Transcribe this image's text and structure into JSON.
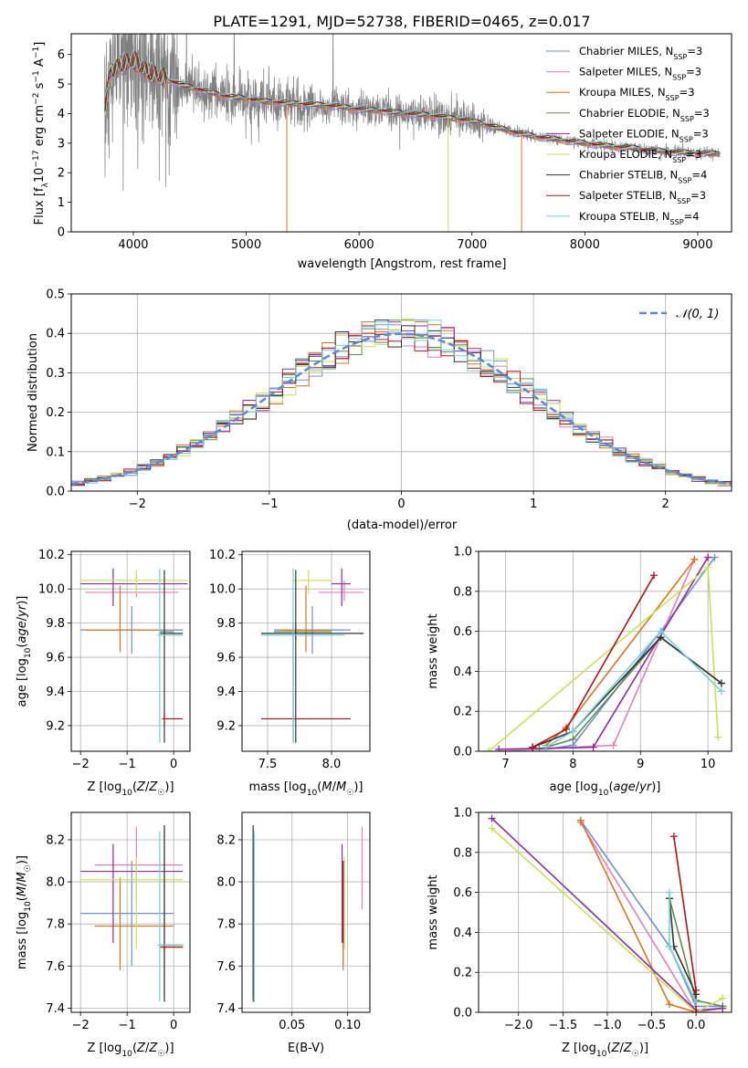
{
  "figure": {
    "title": "PLATE=1291, MJD=52738, FIBERID=0465, z=0.017"
  },
  "palette": [
    {
      "name": "Chabrier MILES",
      "color": "#6f8fd8"
    },
    {
      "name": "Salpeter MILES",
      "color": "#e37fb7"
    },
    {
      "name": "Kroupa MILES",
      "color": "#d9761c"
    },
    {
      "name": "Chabrier ELODIE",
      "color": "#5f8f4a"
    },
    {
      "name": "Salpeter ELODIE",
      "color": "#8e2aa5"
    },
    {
      "name": "Kroupa ELODIE",
      "color": "#c4e356"
    },
    {
      "name": "Chabrier STELIB",
      "color": "#333333"
    },
    {
      "name": "Salpeter STELIB",
      "color": "#b31313"
    },
    {
      "name": "Kroupa STELIB",
      "color": "#6fd3d8"
    }
  ],
  "chart_data": [
    {
      "id": "spectrum",
      "type": "line",
      "title": "PLATE=1291, MJD=52738, FIBERID=0465, z=0.017",
      "xlabel": "wavelength [Angstrom, rest frame]",
      "ylabel": "Flux [fλ10⁻¹⁷ erg cm⁻² s⁻¹ A⁻¹]",
      "xlim": [
        3450,
        9300
      ],
      "ylim": [
        0,
        6.7
      ],
      "xticks": [
        4000,
        5000,
        6000,
        7000,
        8000,
        9000
      ],
      "yticks": [
        0,
        1,
        2,
        3,
        4,
        5,
        6
      ],
      "legend_position": "upper-right",
      "data_color": "#808080",
      "model_x": [
        3750,
        3800,
        3900,
        4000,
        4100,
        4200,
        4400,
        4600,
        4800,
        5000,
        5200,
        5400,
        5600,
        5800,
        6000,
        6200,
        6400,
        6600,
        6800,
        7000,
        7200,
        7400,
        7600,
        7800,
        8000,
        8200,
        8400,
        8600,
        8800,
        9000
      ],
      "model_y": [
        4.2,
        5.4,
        5.7,
        5.8,
        5.5,
        5.3,
        5.0,
        4.8,
        4.6,
        4.5,
        4.4,
        4.35,
        4.3,
        4.25,
        4.15,
        4.1,
        4.0,
        3.95,
        3.85,
        3.75,
        3.55,
        3.35,
        3.2,
        3.1,
        3.0,
        2.9,
        2.85,
        2.75,
        2.7,
        2.65
      ],
      "series": [
        {
          "name": "Chabrier MILES, N_SSP=3",
          "label_main": "Chabrier MILES, N",
          "label_tail": "=3"
        },
        {
          "name": "Salpeter MILES, N_SSP=3",
          "label_main": "Salpeter MILES, N",
          "label_tail": "=3"
        },
        {
          "name": "Kroupa MILES, N_SSP=3",
          "label_main": "Kroupa MILES, N",
          "label_tail": "=3"
        },
        {
          "name": "Chabrier ELODIE, N_SSP=3",
          "label_main": "Chabrier ELODIE, N",
          "label_tail": "=3"
        },
        {
          "name": "Salpeter ELODIE, N_SSP=3",
          "label_main": "Salpeter ELODIE, N",
          "label_tail": "=3"
        },
        {
          "name": "Kroupa ELODIE, N_SSP=3",
          "label_main": "Kroupa ELODIE, N",
          "label_tail": "=3"
        },
        {
          "name": "Chabrier STELIB, N_SSP=4",
          "label_main": "Chabrier STELIB, N",
          "label_tail": "=4"
        },
        {
          "name": "Salpeter STELIB, N_SSP=3",
          "label_main": "Salpeter STELIB, N",
          "label_tail": "=3"
        },
        {
          "name": "Kroupa STELIB, N_SSP=4",
          "label_main": "Kroupa STELIB, N",
          "label_tail": "=4"
        }
      ],
      "legend_subscript": "SSP",
      "model_drops": [
        {
          "series_index": 2,
          "x": 5360
        },
        {
          "series_index": 2,
          "x": 7440
        },
        {
          "series_index": 5,
          "x": 6790
        }
      ]
    },
    {
      "id": "residuals",
      "type": "line",
      "xlabel": "(data-model)/error",
      "ylabel": "Normed distribution",
      "xlim": [
        -2.5,
        2.5
      ],
      "ylim": [
        0,
        0.5
      ],
      "xticks": [
        -2,
        -1,
        0,
        1,
        2
      ],
      "yticks": [
        0.0,
        0.1,
        0.2,
        0.3,
        0.4,
        0.5
      ],
      "grid": true,
      "legend_position": "upper-right",
      "reference_label": "𝒩(0, 1)",
      "reference_color": "#5a8bd6",
      "bin_width": 0.1,
      "gaussian_sigma": 1.0
    },
    {
      "id": "age-vs-Z",
      "type": "scatter",
      "xlabel": "Z [log10(Z/Z☉)]",
      "ylabel": "age [log10(age/yr)]",
      "xlim": [
        -2.2,
        0.35
      ],
      "ylim": [
        9.05,
        10.22
      ],
      "xticks": [
        -2,
        -1,
        0
      ],
      "yticks": [
        9.2,
        9.4,
        9.6,
        9.8,
        10.0,
        10.2
      ],
      "errorbars": [
        {
          "c": 0,
          "x": -0.9,
          "y": 9.76,
          "xe": [
            -2.0,
            0.2
          ],
          "ye": [
            9.62,
            9.9
          ]
        },
        {
          "c": 1,
          "x": -0.8,
          "y": 9.98,
          "xe": [
            -1.9,
            0.1
          ],
          "ye": [
            9.95,
            10.0
          ]
        },
        {
          "c": 2,
          "x": -1.15,
          "y": 9.76,
          "xe": [
            -1.9,
            -0.3
          ],
          "ye": [
            9.63,
            10.02
          ]
        },
        {
          "c": 3,
          "x": -0.2,
          "y": 9.75,
          "xe": [
            -0.3,
            0.0
          ],
          "ye": [
            9.7,
            9.8
          ]
        },
        {
          "c": 4,
          "x": -1.3,
          "y": 10.03,
          "xe": [
            -2.0,
            0.3
          ],
          "ye": [
            9.9,
            10.12
          ]
        },
        {
          "c": 5,
          "x": -0.8,
          "y": 10.05,
          "xe": [
            -2.0,
            0.3
          ],
          "ye": [
            9.97,
            10.11
          ]
        },
        {
          "c": 6,
          "x": -0.2,
          "y": 9.74,
          "xe": [
            -0.3,
            0.2
          ],
          "ye": [
            9.1,
            10.11
          ]
        },
        {
          "c": 7,
          "x": -0.2,
          "y": 9.24,
          "xe": [
            -0.25,
            0.2
          ],
          "ye": [
            9.2,
            9.28
          ]
        },
        {
          "c": 8,
          "x": -0.3,
          "y": 9.73,
          "xe": [
            -0.35,
            0.2
          ],
          "ye": [
            9.1,
            10.12
          ]
        }
      ]
    },
    {
      "id": "age-vs-mass",
      "type": "scatter",
      "xlabel": "mass [log10(M/M☉)]",
      "ylabel": "",
      "xlim": [
        7.3,
        8.3
      ],
      "ylim": [
        9.05,
        10.22
      ],
      "xticks": [
        7.5,
        8.0
      ],
      "yticks": [
        9.2,
        9.4,
        9.6,
        9.8,
        10.0,
        10.2
      ],
      "errorbars": [
        {
          "c": 0,
          "x": 7.85,
          "y": 9.76,
          "xe": [
            7.55,
            8.15
          ],
          "ye": [
            9.62,
            9.9
          ]
        },
        {
          "c": 1,
          "x": 8.1,
          "y": 9.98,
          "xe": [
            7.9,
            8.25
          ],
          "ye": [
            9.93,
            10.05
          ]
        },
        {
          "c": 2,
          "x": 7.8,
          "y": 9.76,
          "xe": [
            7.6,
            8.0
          ],
          "ye": [
            9.63,
            10.02
          ]
        },
        {
          "c": 3,
          "x": 7.72,
          "y": 9.75,
          "xe": [
            7.55,
            8.0
          ],
          "ye": [
            9.7,
            9.8
          ]
        },
        {
          "c": 4,
          "x": 8.08,
          "y": 10.03,
          "xe": [
            8.0,
            8.15
          ],
          "ye": [
            9.9,
            10.12
          ]
        },
        {
          "c": 5,
          "x": 7.82,
          "y": 10.05,
          "xe": [
            7.7,
            8.0
          ],
          "ye": [
            9.97,
            10.11
          ]
        },
        {
          "c": 6,
          "x": 7.72,
          "y": 9.74,
          "xe": [
            7.45,
            8.25
          ],
          "ye": [
            9.1,
            10.11
          ]
        },
        {
          "c": 7,
          "x": 7.7,
          "y": 9.24,
          "xe": [
            7.45,
            8.15
          ],
          "ye": [
            9.1,
            9.8
          ]
        },
        {
          "c": 8,
          "x": 7.7,
          "y": 9.73,
          "xe": [
            7.45,
            8.1
          ],
          "ye": [
            9.1,
            10.12
          ]
        }
      ]
    },
    {
      "id": "massweight-vs-age",
      "type": "line",
      "xlabel": "age [log10(age/yr)]",
      "ylabel": "mass weight",
      "xlim": [
        6.6,
        10.35
      ],
      "ylim": [
        0,
        1.0
      ],
      "xticks": [
        7,
        8,
        9,
        10
      ],
      "yticks": [
        0.0,
        0.2,
        0.4,
        0.6,
        0.8,
        1.0
      ],
      "grid": true,
      "series": [
        {
          "c": 0,
          "x": [
            7.6,
            8.0,
            9.3,
            10.1
          ],
          "y": [
            0.01,
            0.03,
            0.6,
            0.97
          ]
        },
        {
          "c": 1,
          "x": 7.5,
          "y": 0
        },
        {
          "c": 1,
          "x": [
            6.9,
            8.6,
            9.8
          ],
          "y": [
            0.0,
            0.03,
            0.96
          ]
        },
        {
          "c": 2,
          "x": [
            7.6,
            7.9,
            9.8
          ],
          "y": [
            0.03,
            0.12,
            0.96
          ]
        },
        {
          "c": 3,
          "x": [
            7.5,
            8.0,
            9.3,
            10.2
          ],
          "y": [
            0.01,
            0.06,
            0.57,
            0.34
          ]
        },
        {
          "c": 4,
          "x": [
            6.9,
            8.3,
            10.0
          ],
          "y": [
            0.01,
            0.02,
            0.97
          ]
        },
        {
          "c": 5,
          "x": [
            6.75,
            10.0,
            10.15
          ],
          "y": [
            0.0,
            0.92,
            0.07
          ]
        },
        {
          "c": 6,
          "x": [
            7.4,
            8.0,
            9.3,
            10.2
          ],
          "y": [
            0.02,
            0.1,
            0.57,
            0.34
          ]
        },
        {
          "c": 7,
          "x": [
            7.4,
            7.9,
            9.2
          ],
          "y": [
            0.02,
            0.11,
            0.88
          ]
        },
        {
          "c": 8,
          "x": [
            7.6,
            8.0,
            9.3,
            10.2
          ],
          "y": [
            0.02,
            0.1,
            0.6,
            0.3
          ]
        }
      ]
    },
    {
      "id": "mass-vs-Z",
      "type": "scatter",
      "xlabel": "Z [log10(Z/Z☉)]",
      "ylabel": "mass [log10(M/M☉)]",
      "xlim": [
        -2.2,
        0.35
      ],
      "ylim": [
        7.38,
        8.33
      ],
      "xticks": [
        -2,
        -1,
        0
      ],
      "yticks": [
        7.4,
        7.6,
        7.8,
        8.0,
        8.2
      ],
      "errorbars": [
        {
          "c": 0,
          "x": -0.9,
          "y": 7.85,
          "xe": [
            -2.0,
            0.0
          ],
          "ye": [
            7.6,
            8.1
          ]
        },
        {
          "c": 1,
          "x": -0.8,
          "y": 8.08,
          "xe": [
            -1.7,
            0.2
          ],
          "ye": [
            7.9,
            8.26
          ]
        },
        {
          "c": 2,
          "x": -1.15,
          "y": 7.79,
          "xe": [
            -1.7,
            0.0
          ],
          "ye": [
            7.58,
            8.02
          ]
        },
        {
          "c": 3,
          "x": -0.2,
          "y": 7.7,
          "xe": [
            -0.3,
            0.2
          ],
          "ye": [
            7.45,
            8.25
          ]
        },
        {
          "c": 4,
          "x": -1.3,
          "y": 8.05,
          "xe": [
            -2.0,
            0.2
          ],
          "ye": [
            7.71,
            8.18
          ]
        },
        {
          "c": 5,
          "x": -0.8,
          "y": 8.01,
          "xe": [
            -2.0,
            0.2
          ],
          "ye": [
            7.68,
            8.12
          ]
        },
        {
          "c": 6,
          "x": -0.2,
          "y": 7.69,
          "xe": [
            -0.3,
            0.2
          ],
          "ye": [
            7.43,
            8.27
          ]
        },
        {
          "c": 7,
          "x": -0.2,
          "y": 7.69,
          "xe": [
            -0.25,
            0.2
          ],
          "ye": [
            7.67,
            7.71
          ]
        },
        {
          "c": 8,
          "x": -0.3,
          "y": 7.7,
          "xe": [
            -0.35,
            0.2
          ],
          "ye": [
            7.43,
            8.24
          ]
        }
      ]
    },
    {
      "id": "mass-vs-EBV",
      "type": "scatter",
      "xlabel": "E(B-V)",
      "ylabel": "",
      "xlim": [
        0.005,
        0.12
      ],
      "ylim": [
        7.38,
        8.33
      ],
      "xticks": [
        0.05,
        0.1
      ],
      "yticks": [
        7.4,
        7.6,
        7.8,
        8.0,
        8.2
      ],
      "errorbars": [
        {
          "c": 0,
          "x": 0.096,
          "y": 7.85,
          "ye": [
            7.6,
            8.1
          ]
        },
        {
          "c": 1,
          "x": 0.113,
          "y": 8.08,
          "ye": [
            7.87,
            8.26
          ]
        },
        {
          "c": 2,
          "x": 0.096,
          "y": 7.79,
          "ye": [
            7.58,
            8.02
          ]
        },
        {
          "c": 3,
          "x": 0.015,
          "y": 7.8,
          "ye": [
            7.45,
            8.25
          ]
        },
        {
          "c": 4,
          "x": 0.095,
          "y": 8.05,
          "ye": [
            7.71,
            8.18
          ]
        },
        {
          "c": 5,
          "x": 0.097,
          "y": 8.01,
          "ye": [
            7.68,
            8.12
          ]
        },
        {
          "c": 6,
          "x": 0.015,
          "y": 7.85,
          "ye": [
            7.43,
            8.27
          ]
        },
        {
          "c": 7,
          "x": 0.096,
          "y": 7.9,
          "ye": [
            7.71,
            8.1
          ]
        },
        {
          "c": 8,
          "x": 0.016,
          "y": 7.8,
          "ye": [
            7.43,
            8.24
          ]
        }
      ]
    },
    {
      "id": "massweight-vs-Z",
      "type": "line",
      "xlabel": "Z [log10(Z/Z☉)]",
      "ylabel": "mass weight",
      "xlim": [
        -2.45,
        0.4
      ],
      "ylim": [
        0,
        1.0
      ],
      "xticks": [
        -2.0,
        -1.5,
        -1.0,
        -0.5,
        0.0
      ],
      "yticks": [
        0.0,
        0.2,
        0.4,
        0.6,
        0.8,
        1.0
      ],
      "grid": true,
      "series": [
        {
          "c": 0,
          "x": [
            -1.3,
            -0.3,
            0.0,
            0.3
          ],
          "y": [
            0.96,
            0.33,
            0.03,
            0.03
          ]
        },
        {
          "c": 1,
          "x": [
            -1.3,
            0.0,
            0.3
          ],
          "y": [
            0.95,
            0.0,
            0.02
          ]
        },
        {
          "c": 2,
          "x": [
            -1.3,
            -0.3,
            0.0
          ],
          "y": [
            0.96,
            0.04,
            0.0
          ]
        },
        {
          "c": 3,
          "x": [
            -0.3,
            0.0,
            0.3
          ],
          "y": [
            0.57,
            0.06,
            0.03
          ]
        },
        {
          "c": 4,
          "x": [
            -2.3,
            0.0,
            0.3
          ],
          "y": [
            0.97,
            0.01,
            0.02
          ]
        },
        {
          "c": 5,
          "x": [
            -2.3,
            0.0,
            0.3
          ],
          "y": [
            0.92,
            0.0,
            0.07
          ]
        },
        {
          "c": 6,
          "x": [
            -0.3,
            -0.25,
            0.0
          ],
          "y": [
            0.57,
            0.33,
            0.09
          ]
        },
        {
          "c": 7,
          "x": [
            -0.25,
            0.0,
            0.0
          ],
          "y": [
            0.88,
            0.11,
            0.0
          ]
        },
        {
          "c": 8,
          "x": [
            -0.3,
            -0.3,
            0.0
          ],
          "y": [
            0.6,
            0.33,
            0.05
          ]
        }
      ]
    }
  ]
}
